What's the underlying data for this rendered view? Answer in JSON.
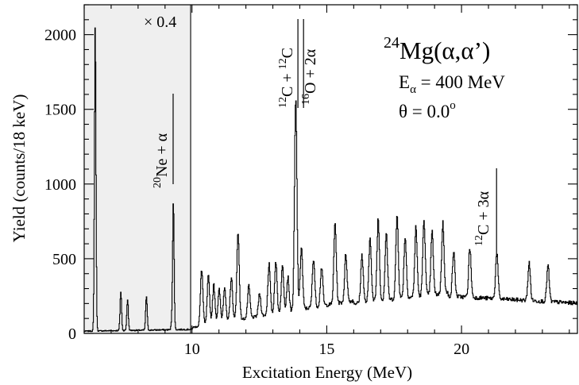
{
  "chart_data": {
    "type": "line",
    "title": "",
    "xlabel": "Excitation Energy (MeV)",
    "ylabel": "Yield (counts/18 keV)",
    "xlim": [
      6,
      24.3
    ],
    "ylim": [
      0,
      2200
    ],
    "x_ticks": [
      10,
      15,
      20
    ],
    "x_tick_labels": [
      "10",
      "15",
      "20"
    ],
    "y_ticks": [
      0,
      500,
      1000,
      1500,
      2000
    ],
    "y_tick_labels": [
      "0",
      "500",
      "1000",
      "1500",
      "2000"
    ],
    "grid": false,
    "scaled_region": {
      "x_start": 6,
      "x_end": 9.95,
      "label": "× 0.4",
      "fill": "#efefef"
    },
    "reaction": {
      "prefix": "24",
      "main": "Mg(α,α’)"
    },
    "beam_energy": {
      "main": "E",
      "sub": "α",
      "rest": " = 400 MeV"
    },
    "angle": {
      "main": "θ = 0.0",
      "sup": "o"
    },
    "thresholds": [
      {
        "name": "ne-alpha",
        "x": 9.3,
        "sup": "20",
        "text": "Ne + α"
      },
      {
        "name": "c-c",
        "x": 13.93,
        "sup": "12",
        "text": "C + ",
        "sup2": "12",
        "text2": "C"
      },
      {
        "name": "o-2alpha",
        "x": 14.05,
        "sup": "16",
        "text": "O + 2α"
      },
      {
        "name": "c-3alpha",
        "x": 21.3,
        "sup": "12",
        "text": "C + 3α"
      }
    ],
    "series": [
      {
        "line_color": "#000000",
        "peaks": [
          [
            6.4,
            2040
          ],
          [
            7.35,
            260
          ],
          [
            7.6,
            210
          ],
          [
            8.3,
            230
          ],
          [
            9.25,
            60
          ],
          [
            9.3,
            830
          ],
          [
            10.35,
            380
          ],
          [
            10.6,
            320
          ],
          [
            10.8,
            260
          ],
          [
            11.0,
            220
          ],
          [
            11.2,
            240
          ],
          [
            11.45,
            290
          ],
          [
            11.7,
            580
          ],
          [
            12.1,
            210
          ],
          [
            12.5,
            150
          ],
          [
            12.85,
            340
          ],
          [
            13.1,
            350
          ],
          [
            13.35,
            310
          ],
          [
            13.55,
            230
          ],
          [
            13.84,
            1400
          ],
          [
            14.05,
            420
          ],
          [
            14.5,
            330
          ],
          [
            14.8,
            260
          ],
          [
            15.3,
            540
          ],
          [
            15.7,
            320
          ],
          [
            16.3,
            320
          ],
          [
            16.6,
            430
          ],
          [
            16.9,
            550
          ],
          [
            17.2,
            450
          ],
          [
            17.6,
            560
          ],
          [
            17.9,
            410
          ],
          [
            18.3,
            460
          ],
          [
            18.6,
            510
          ],
          [
            18.9,
            420
          ],
          [
            19.3,
            470
          ],
          [
            19.7,
            300
          ],
          [
            20.3,
            330
          ],
          [
            21.3,
            310
          ],
          [
            22.5,
            250
          ],
          [
            23.2,
            240
          ]
        ]
      }
    ]
  }
}
